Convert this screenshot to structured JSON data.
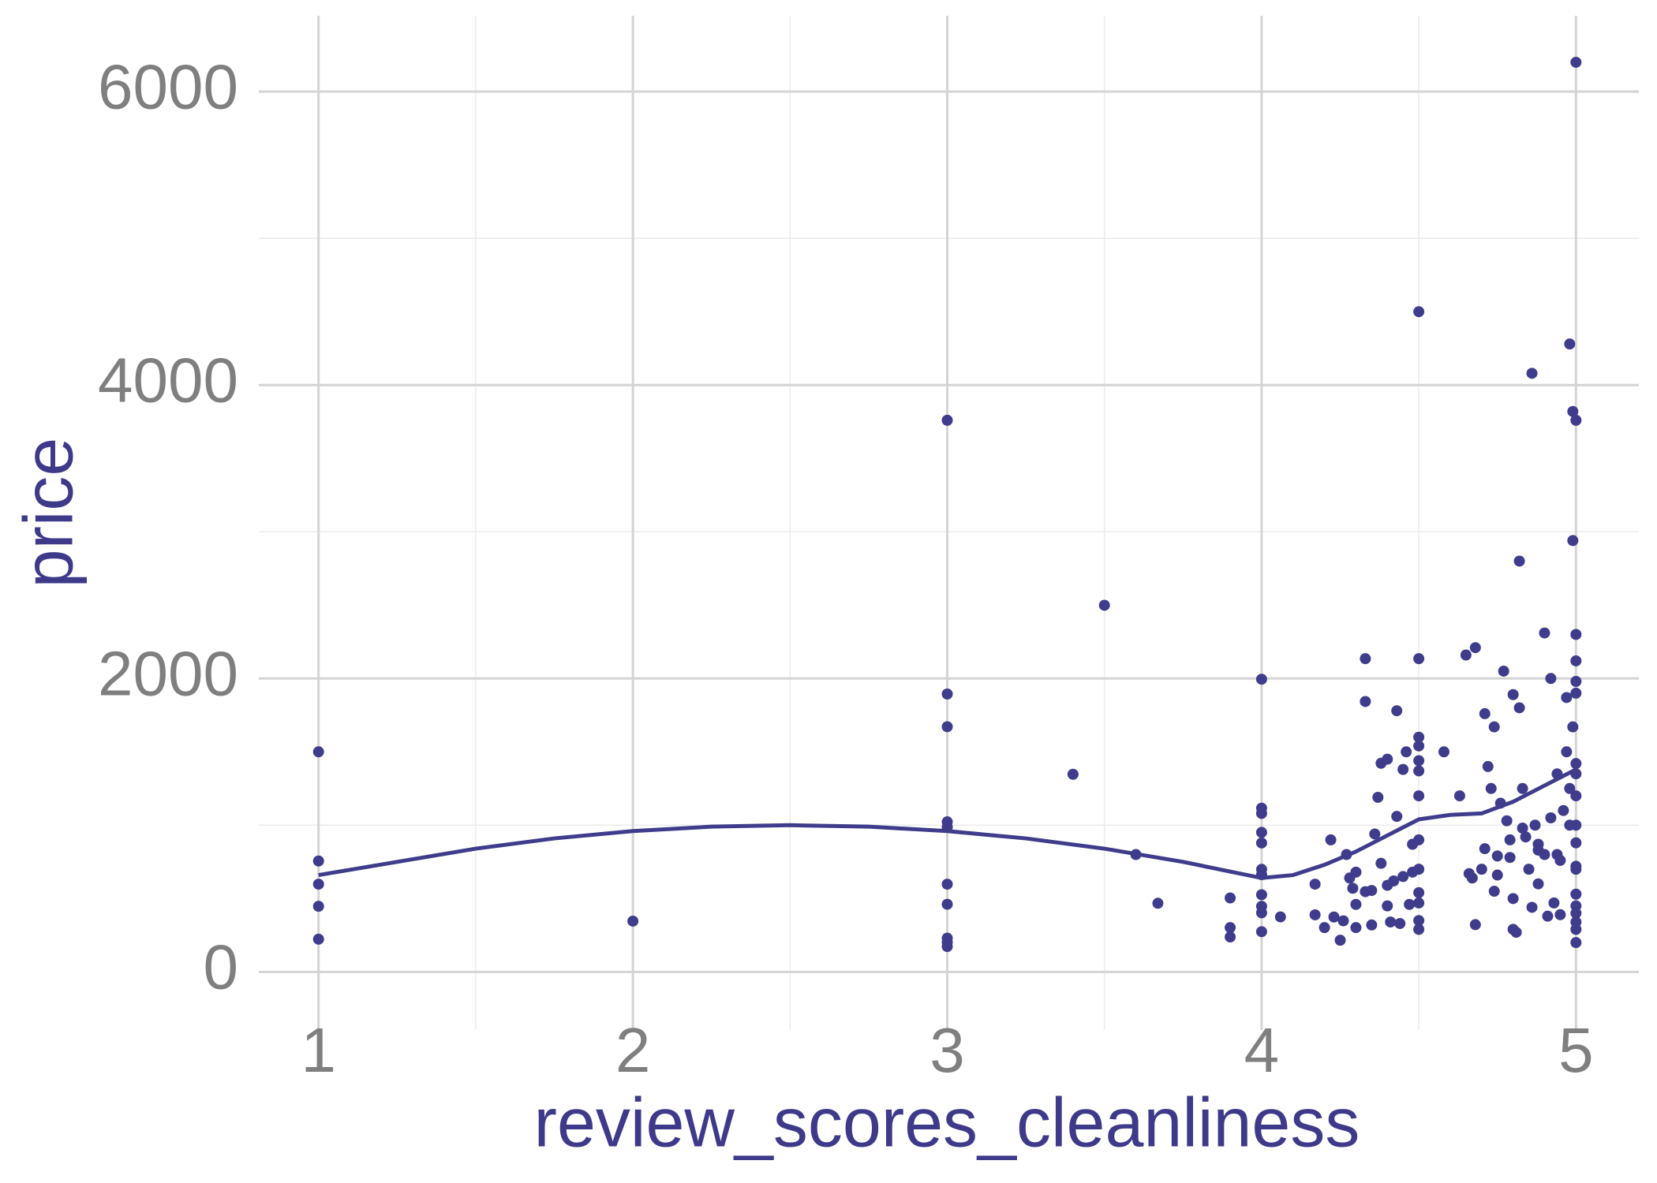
{
  "chart_data": {
    "type": "scatter",
    "x_label": "review_scores_cleanliness",
    "y_label": "price",
    "xlim": [
      0.81,
      5.2
    ],
    "ylim": [
      -396,
      6517
    ],
    "xticks": [
      1,
      2,
      3,
      4,
      5
    ],
    "yticks": [
      0,
      2000,
      4000,
      6000
    ],
    "x_minor_ticks": [
      1.5,
      2.5,
      3.5,
      4.5
    ],
    "y_minor_ticks": [
      1000,
      3000,
      5000
    ],
    "grid": true,
    "color": "#403c8c",
    "points": {
      "x": [
        1,
        1,
        1,
        1,
        1,
        2,
        3,
        3,
        3,
        3,
        3,
        3,
        3,
        3,
        3,
        3,
        3.5,
        3.4,
        3.6,
        3.67,
        3.9,
        3.9,
        3.9,
        4,
        4,
        4,
        4,
        4,
        4,
        4,
        4,
        4,
        4,
        4,
        4.06,
        4.17,
        4.17,
        4.2,
        4.22,
        4.23,
        4.25,
        4.26,
        4.27,
        4.28,
        4.29,
        4.3,
        4.3,
        4.3,
        4.33,
        4.33,
        4.33,
        4.35,
        4.35,
        4.36,
        4.37,
        4.38,
        4.38,
        4.4,
        4.4,
        4.4,
        4.41,
        4.42,
        4.43,
        4.43,
        4.44,
        4.45,
        4.45,
        4.46,
        4.47,
        4.48,
        4.48,
        4.5,
        4.5,
        4.5,
        4.5,
        4.5,
        4.5,
        4.5,
        4.5,
        4.5,
        4.5,
        4.5,
        4.5,
        4.5,
        4.58,
        4.63,
        4.65,
        4.66,
        4.67,
        4.68,
        4.68,
        4.7,
        4.71,
        4.71,
        4.72,
        4.73,
        4.74,
        4.74,
        4.75,
        4.75,
        4.76,
        4.77,
        4.78,
        4.79,
        4.79,
        4.8,
        4.8,
        4.8,
        4.81,
        4.82,
        4.82,
        4.83,
        4.83,
        4.84,
        4.85,
        4.86,
        4.86,
        4.87,
        4.88,
        4.88,
        4.88,
        4.9,
        4.9,
        4.91,
        4.92,
        4.92,
        4.93,
        4.94,
        4.94,
        4.95,
        4.95,
        4.96,
        4.97,
        4.97,
        4.98,
        4.98,
        4.98,
        4.99,
        4.99,
        4.99,
        5,
        5,
        5,
        5,
        5,
        5,
        5,
        5,
        5,
        5,
        5,
        5,
        5,
        5,
        5,
        5,
        5,
        5,
        5
      ],
      "values": [
        1500,
        756,
        598,
        447,
        223,
        346,
        3760,
        1894,
        1671,
        1023,
        987,
        598,
        461,
        230,
        202,
        173,
        2499,
        1347,
        800,
        468,
        504,
        302,
        238,
        1995,
        1116,
        1080,
        951,
        879,
        699,
        663,
        526,
        447,
        403,
        274,
        375,
        598,
        389,
        302,
        900,
        374,
        216,
        348,
        800,
        640,
        570,
        302,
        460,
        680,
        2135,
        1843,
        547,
        320,
        555,
        940,
        1190,
        1422,
        740,
        1450,
        450,
        590,
        340,
        620,
        1060,
        1780,
        330,
        1380,
        650,
        1500,
        460,
        680,
        870,
        4500,
        2135,
        1600,
        1540,
        1440,
        1370,
        1200,
        900,
        700,
        540,
        470,
        350,
        290,
        1500,
        1200,
        2160,
        670,
        640,
        2210,
        322,
        700,
        840,
        1760,
        1400,
        1250,
        550,
        1670,
        790,
        660,
        1150,
        2050,
        1030,
        900,
        780,
        1890,
        500,
        290,
        270,
        2800,
        1800,
        1250,
        980,
        920,
        700,
        440,
        4080,
        1000,
        870,
        830,
        600,
        2310,
        800,
        380,
        2000,
        1050,
        470,
        1350,
        800,
        760,
        390,
        1100,
        1870,
        1500,
        1250,
        1000,
        4280,
        2940,
        1670,
        3820,
        6200,
        3760,
        2300,
        2120,
        1980,
        1900,
        1420,
        1350,
        1200,
        1000,
        880,
        720,
        700,
        530,
        450,
        400,
        340,
        290,
        200
      ]
    },
    "smooth": {
      "x": [
        1,
        1.25,
        1.5,
        1.75,
        2,
        2.25,
        2.5,
        2.75,
        3,
        3.25,
        3.5,
        3.75,
        4,
        4.1,
        4.2,
        4.3,
        4.4,
        4.5,
        4.6,
        4.7,
        4.8,
        4.9,
        5
      ],
      "values": [
        660,
        750,
        840,
        910,
        960,
        990,
        1000,
        990,
        960,
        910,
        840,
        750,
        640,
        660,
        730,
        820,
        930,
        1040,
        1070,
        1080,
        1160,
        1270,
        1380
      ]
    }
  }
}
